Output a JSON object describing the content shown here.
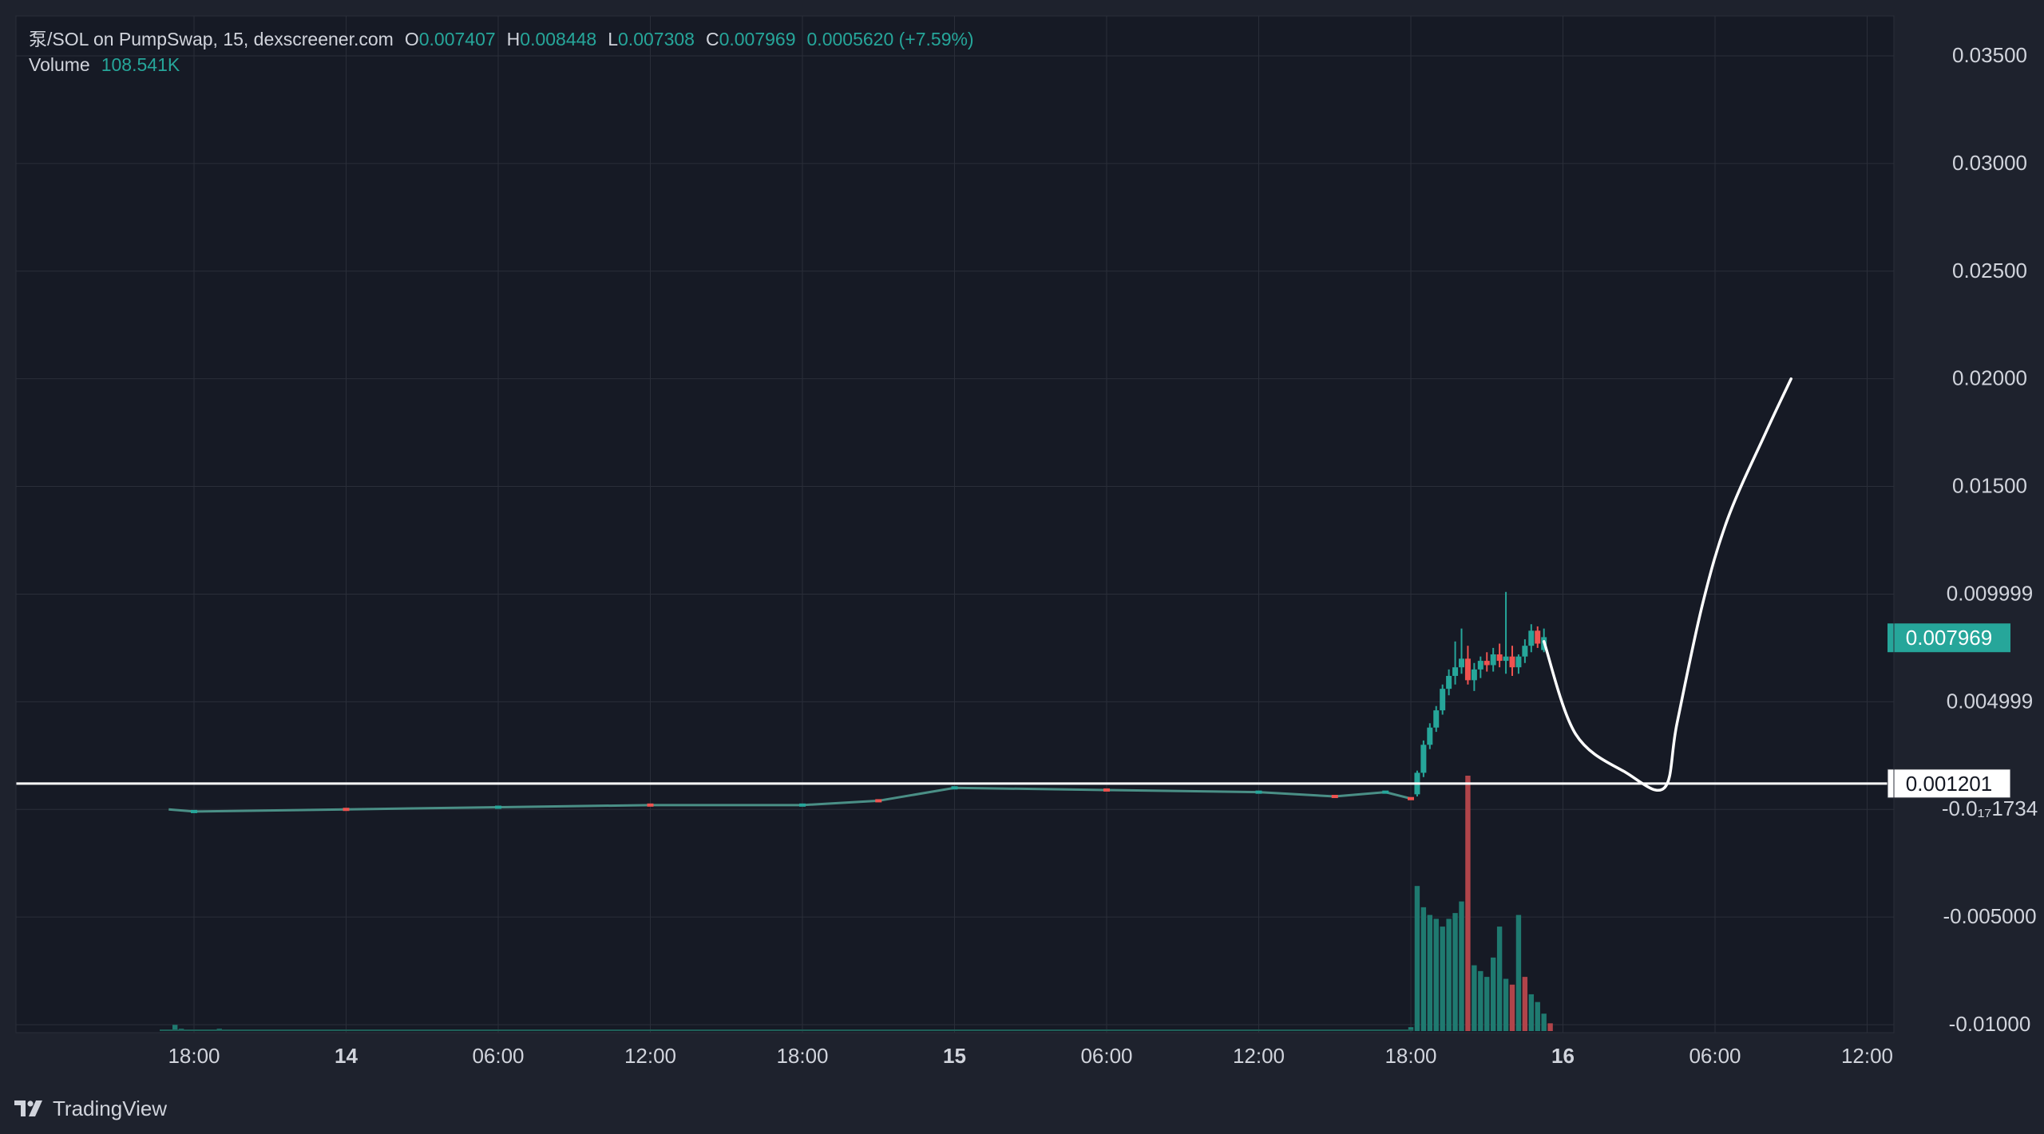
{
  "header": {
    "symbol": "泵/SOL on PumpSwap, 15, dexscreener.com",
    "open_label": "O",
    "open": "0.007407",
    "high_label": "H",
    "high": "0.008448",
    "low_label": "L",
    "low": "0.007308",
    "close_label": "C",
    "close": "0.007969",
    "change": "0.0005620 (+7.59%)",
    "volume_label": "Volume",
    "volume": "108.541K"
  },
  "footer": {
    "brand": "TradingView",
    "logo_icon": "tradingview-logo-icon"
  },
  "colors": {
    "background": "#1e222d",
    "pane": "#161a25",
    "grid": "#2a2e39",
    "up": "#26a69a",
    "down": "#ef5350",
    "text": "#d1d4dc",
    "drawing": "#ffffff"
  },
  "chart_data": {
    "type": "candlestick",
    "title": "泵/SOL on PumpSwap, 15, dexscreener.com",
    "ylim": [
      -0.0105,
      0.0363
    ],
    "y_ticks": [
      "0.03500",
      "0.03000",
      "0.02500",
      "0.02000",
      "0.01500",
      "0.009999",
      "0.004999",
      "-0.0₁₇1734",
      "-0.005000",
      "-0.01000"
    ],
    "x_ticks": [
      "18:00",
      "14",
      "06:00",
      "12:00",
      "18:00",
      "15",
      "06:00",
      "12:00",
      "18:00",
      "16",
      "06:00",
      "12:00"
    ],
    "last_price_label": "0.007969",
    "horizontal_line": {
      "value": 0.001201,
      "label": "0.001201"
    },
    "pre_launch": [
      {
        "time": "13 17:00",
        "price": 0.0
      },
      {
        "time": "13 18:00",
        "price": -0.0001
      },
      {
        "time": "14 00:00",
        "price": 0.0
      },
      {
        "time": "14 06:00",
        "price": 0.0001
      },
      {
        "time": "14 12:00",
        "price": 0.0002
      },
      {
        "time": "14 18:00",
        "price": 0.0002
      },
      {
        "time": "14 21:00",
        "price": 0.0004
      },
      {
        "time": "15 00:00",
        "price": 0.001
      },
      {
        "time": "15 06:00",
        "price": 0.0009
      },
      {
        "time": "15 12:00",
        "price": 0.0008
      },
      {
        "time": "15 15:00",
        "price": 0.0006
      },
      {
        "time": "15 17:00",
        "price": 0.0008
      },
      {
        "time": "15 18:00",
        "price": 0.0005
      }
    ],
    "candles": [
      {
        "time": "15 18:15",
        "open": 0.0007,
        "high": 0.0018,
        "low": 0.0006,
        "close": 0.0017
      },
      {
        "time": "15 18:30",
        "open": 0.0017,
        "high": 0.0032,
        "low": 0.0015,
        "close": 0.003
      },
      {
        "time": "15 18:45",
        "open": 0.003,
        "high": 0.004,
        "low": 0.0028,
        "close": 0.0038
      },
      {
        "time": "15 19:00",
        "open": 0.0038,
        "high": 0.0048,
        "low": 0.0036,
        "close": 0.0046
      },
      {
        "time": "15 19:15",
        "open": 0.0046,
        "high": 0.0058,
        "low": 0.0044,
        "close": 0.0056
      },
      {
        "time": "15 19:30",
        "open": 0.0056,
        "high": 0.0065,
        "low": 0.0053,
        "close": 0.0062
      },
      {
        "time": "15 19:45",
        "open": 0.0062,
        "high": 0.0078,
        "low": 0.0058,
        "close": 0.0066
      },
      {
        "time": "15 20:00",
        "open": 0.0066,
        "high": 0.0084,
        "low": 0.0063,
        "close": 0.007
      },
      {
        "time": "15 20:15",
        "open": 0.007,
        "high": 0.0076,
        "low": 0.0058,
        "close": 0.006
      },
      {
        "time": "15 20:30",
        "open": 0.006,
        "high": 0.0068,
        "low": 0.0055,
        "close": 0.0065
      },
      {
        "time": "15 20:45",
        "open": 0.0065,
        "high": 0.0071,
        "low": 0.0061,
        "close": 0.0069
      },
      {
        "time": "15 21:00",
        "open": 0.0069,
        "high": 0.0073,
        "low": 0.0064,
        "close": 0.0067
      },
      {
        "time": "15 21:15",
        "open": 0.0067,
        "high": 0.0075,
        "low": 0.0064,
        "close": 0.0072
      },
      {
        "time": "15 21:30",
        "open": 0.0072,
        "high": 0.0077,
        "low": 0.0066,
        "close": 0.0069
      },
      {
        "time": "15 21:45",
        "open": 0.0069,
        "high": 0.0101,
        "low": 0.0063,
        "close": 0.0071
      },
      {
        "time": "15 22:00",
        "open": 0.0071,
        "high": 0.0076,
        "low": 0.0062,
        "close": 0.0066
      },
      {
        "time": "15 22:15",
        "open": 0.0066,
        "high": 0.0072,
        "low": 0.0063,
        "close": 0.0071
      },
      {
        "time": "15 22:30",
        "open": 0.0071,
        "high": 0.0079,
        "low": 0.0068,
        "close": 0.0076
      },
      {
        "time": "15 22:45",
        "open": 0.0076,
        "high": 0.0086,
        "low": 0.0073,
        "close": 0.0083
      },
      {
        "time": "15 23:00",
        "open": 0.0083,
        "high": 0.0085,
        "low": 0.0075,
        "close": 0.0077
      },
      {
        "time": "15 23:15",
        "open": 0.0074,
        "high": 0.0084,
        "low": 0.0073,
        "close": 0.008
      }
    ],
    "volume": [
      {
        "time": "13 17:15",
        "value": 0.032,
        "color": "up"
      },
      {
        "time": "13 17:30",
        "value": 0.012,
        "color": "up"
      },
      {
        "time": "13 17:45",
        "value": 0.006,
        "color": "down"
      },
      {
        "time": "13 19:00",
        "value": 0.012,
        "color": "up"
      },
      {
        "time": "15 18:00",
        "value": 0.02,
        "color": "up"
      },
      {
        "time": "15 18:15",
        "value": 0.75,
        "color": "up"
      },
      {
        "time": "15 18:30",
        "value": 0.64,
        "color": "up"
      },
      {
        "time": "15 18:45",
        "value": 0.6,
        "color": "up"
      },
      {
        "time": "15 19:00",
        "value": 0.58,
        "color": "up"
      },
      {
        "time": "15 19:15",
        "value": 0.54,
        "color": "up"
      },
      {
        "time": "15 19:30",
        "value": 0.58,
        "color": "up"
      },
      {
        "time": "15 19:45",
        "value": 0.61,
        "color": "up"
      },
      {
        "time": "15 20:00",
        "value": 0.67,
        "color": "up"
      },
      {
        "time": "15 20:15",
        "value": 1.32,
        "color": "down"
      },
      {
        "time": "15 20:30",
        "value": 0.34,
        "color": "up"
      },
      {
        "time": "15 20:45",
        "value": 0.31,
        "color": "up"
      },
      {
        "time": "15 21:00",
        "value": 0.28,
        "color": "up"
      },
      {
        "time": "15 21:15",
        "value": 0.38,
        "color": "up"
      },
      {
        "time": "15 21:30",
        "value": 0.54,
        "color": "up"
      },
      {
        "time": "15 21:45",
        "value": 0.27,
        "color": "up"
      },
      {
        "time": "15 22:00",
        "value": 0.24,
        "color": "down"
      },
      {
        "time": "15 22:15",
        "value": 0.6,
        "color": "up"
      },
      {
        "time": "15 22:30",
        "value": 0.28,
        "color": "down"
      },
      {
        "time": "15 22:45",
        "value": 0.19,
        "color": "up"
      },
      {
        "time": "15 23:00",
        "value": 0.15,
        "color": "up"
      },
      {
        "time": "15 23:15",
        "value": 0.09,
        "color": "up"
      },
      {
        "time": "15 23:30",
        "value": 0.04,
        "color": "down"
      }
    ],
    "drawing": {
      "type": "freehand-line",
      "points": [
        {
          "time": "15 23:15",
          "price": 0.0078
        },
        {
          "time": "16 00:30",
          "price": 0.0035
        },
        {
          "time": "16 02:30",
          "price": 0.0017
        },
        {
          "time": "16 04:00",
          "price": 0.001
        },
        {
          "time": "16 04:30",
          "price": 0.004
        },
        {
          "time": "16 05:30",
          "price": 0.0095
        },
        {
          "time": "16 06:30",
          "price": 0.0135
        },
        {
          "time": "16 08:00",
          "price": 0.0175
        },
        {
          "time": "16 09:00",
          "price": 0.02
        }
      ]
    }
  }
}
